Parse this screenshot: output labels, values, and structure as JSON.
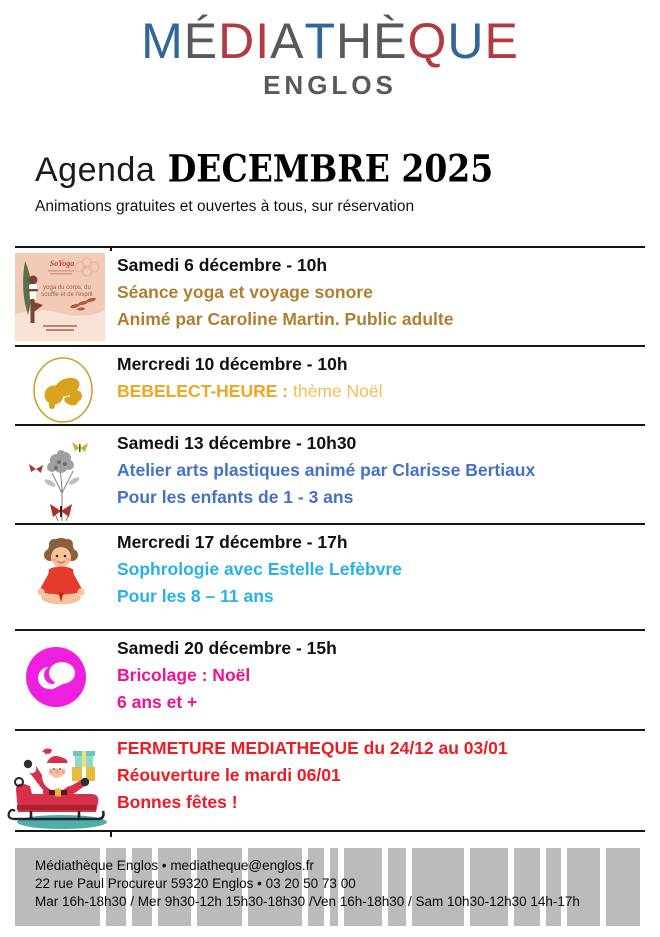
{
  "logo": {
    "letters": [
      {
        "ch": "M",
        "color": "#31669A"
      },
      {
        "ch": "É",
        "color": "#58595B"
      },
      {
        "ch": "D",
        "color": "#B03B40"
      },
      {
        "ch": "I",
        "color": "#B03B40"
      },
      {
        "ch": "A",
        "color": "#58595B"
      },
      {
        "ch": "T",
        "color": "#31669A"
      },
      {
        "ch": "H",
        "color": "#58595B"
      },
      {
        "ch": "È",
        "color": "#58595B"
      },
      {
        "ch": "Q",
        "color": "#B03B40"
      },
      {
        "ch": "U",
        "color": "#31669A"
      },
      {
        "ch": "E",
        "color": "#B03B40"
      }
    ],
    "subtitle": "ENGLOS"
  },
  "header": {
    "title_light": "Agenda",
    "title_month": "DECEMBRE 2025",
    "subtitle": "Animations gratuites et ouvertes à tous, sur réservation"
  },
  "events": [
    {
      "date": "Samedi 6 décembre - 10h",
      "color": "#AF7F2F",
      "lines": [
        "Séance yoga et voyage sonore",
        "Animé par Caroline Martin. Public adulte"
      ],
      "poster": {
        "brand": "SoYoga",
        "tagline_line1": "yoga du corps, du",
        "tagline_line2": "souffle et de l'esprit"
      }
    },
    {
      "date": "Mercredi 10 décembre - 10h",
      "label_bold": "BEBELECT-HEURE :",
      "label_light": " thème Noël",
      "color_bold": "#F0A621",
      "color_light": "#F6BC57"
    },
    {
      "date": "Samedi 13 décembre - 10h30",
      "color": "#4472C4",
      "lines": [
        "Atelier arts plastiques animé par Clarisse Bertiaux",
        "Pour les enfants de 1 - 3 ans"
      ]
    },
    {
      "date": "Mercredi 17 décembre - 17h",
      "color": "#27B2E7",
      "lines": [
        "Sophrologie avec Estelle Lefèbvre",
        "Pour les 8 – 11 ans"
      ]
    },
    {
      "date": "Samedi 20 décembre - 15h",
      "color": "#F2118F",
      "lines": [
        "Bricolage : Noël",
        "6 ans et +"
      ]
    },
    {
      "date": null,
      "color": "#EC1C24",
      "lines": [
        "FERMETURE MEDIATHEQUE du 24/12 au 03/01",
        "Réouverture le mardi 06/01",
        "Bonnes fêtes !"
      ]
    }
  ],
  "footer": {
    "stripe_color": "#BBBBBB",
    "lines": [
      "Médiathèque Englos • mediatheque@englos.fr",
      "22 rue Paul Procureur 59320 Englos • 03 20 50 73 00",
      "Mar 16h-18h30 / Mer 9h30-12h  15h30-18h30 /Ven 16h-18h30 / Sam 10h30-12h30  14h-17h"
    ]
  }
}
